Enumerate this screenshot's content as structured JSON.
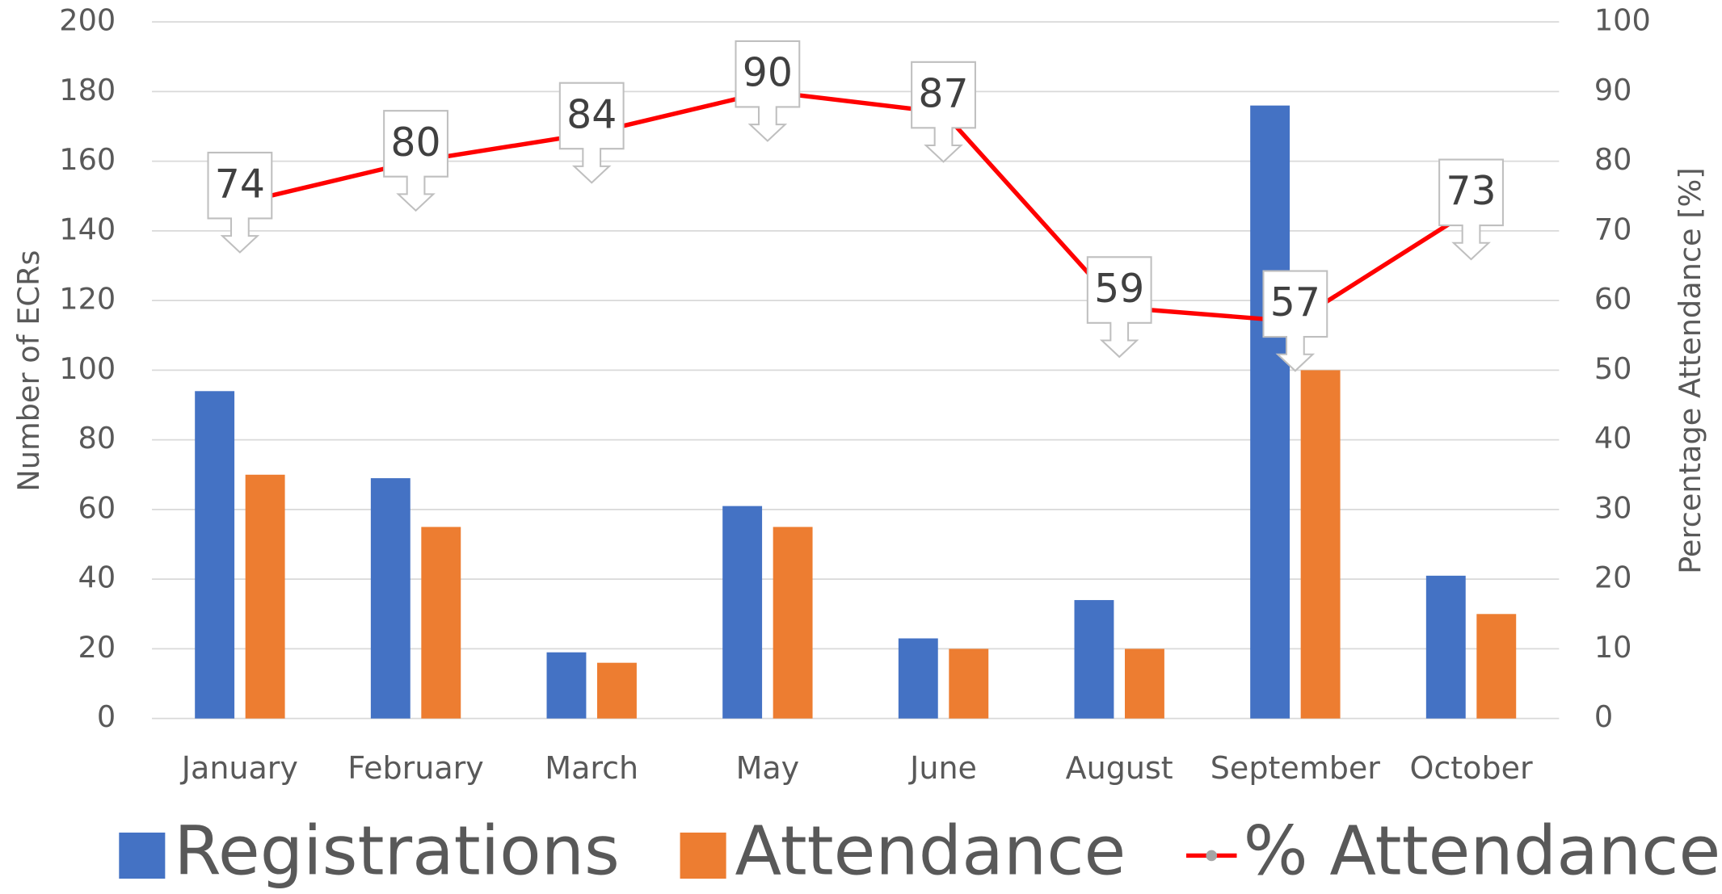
{
  "chart_data": {
    "type": "bar",
    "categories": [
      "January",
      "February",
      "March",
      "May",
      "June",
      "August",
      "September",
      "October"
    ],
    "series": [
      {
        "name": "Registrations",
        "color": "#4472c4",
        "values": [
          94,
          69,
          19,
          61,
          23,
          34,
          176,
          41
        ]
      },
      {
        "name": "Attendance",
        "color": "#ed7d31",
        "values": [
          70,
          55,
          16,
          55,
          20,
          20,
          100,
          30
        ]
      },
      {
        "name": "% Attendance",
        "color": "#ff0000",
        "type": "line",
        "axis": "y2",
        "values": [
          74,
          80,
          84,
          90,
          87,
          59,
          57,
          73
        ]
      }
    ],
    "ylabel": "Number of ECRs",
    "y2label": "Percentage Attendance [%]",
    "ylim": [
      0,
      200
    ],
    "yticks": [
      0,
      20,
      40,
      60,
      80,
      100,
      120,
      140,
      160,
      180,
      200
    ],
    "y2lim": [
      0,
      100
    ],
    "y2ticks": [
      0,
      10,
      20,
      30,
      40,
      50,
      60,
      70,
      80,
      90,
      100
    ],
    "grid": true,
    "legend": "bottom"
  }
}
